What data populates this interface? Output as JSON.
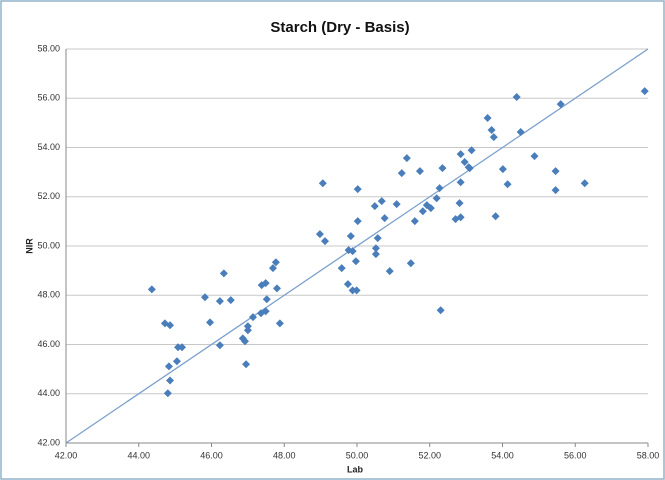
{
  "chart_data": {
    "type": "scatter",
    "title": "Starch (Dry - Basis)",
    "x_label": "Lab",
    "y_label": "NIR",
    "color": "#4a7ebb",
    "grid": true,
    "x": [
      44.36,
      44.72,
      44.86,
      44.83,
      44.86,
      44.8,
      45.05,
      45.08,
      45.19,
      45.82,
      45.96,
      46.23,
      46.34,
      46.23,
      46.53,
      46.86,
      46.92,
      47.0,
      47.0,
      46.95,
      47.14,
      47.36,
      47.38,
      47.49,
      47.49,
      47.52,
      47.69,
      47.77,
      47.8,
      47.88,
      48.98,
      49.12,
      49.06,
      49.58,
      49.75,
      49.77,
      49.83,
      49.88,
      49.88,
      49.99,
      49.97,
      50.02,
      50.02,
      50.49,
      50.52,
      50.52,
      50.57,
      50.68,
      50.76,
      50.9,
      51.09,
      51.23,
      51.37,
      51.48,
      51.59,
      51.73,
      51.81,
      51.92,
      52.03,
      52.19,
      52.27,
      52.35,
      52.3,
      52.71,
      52.85,
      52.82,
      52.85,
      52.85,
      52.96,
      53.07,
      53.15,
      53.1,
      53.59,
      53.7,
      53.76,
      53.81,
      54.01,
      54.14,
      54.39,
      54.5,
      54.88,
      55.46,
      55.46,
      55.6,
      56.26,
      57.91
    ],
    "values": [
      48.24,
      46.86,
      46.78,
      45.11,
      44.54,
      44.02,
      45.32,
      45.89,
      45.89,
      47.92,
      46.9,
      47.76,
      48.89,
      45.97,
      47.8,
      46.25,
      46.13,
      46.74,
      46.58,
      45.2,
      47.11,
      47.27,
      48.41,
      48.49,
      47.35,
      47.84,
      49.1,
      49.34,
      48.28,
      46.86,
      50.48,
      50.2,
      52.55,
      49.1,
      48.45,
      49.83,
      50.4,
      49.79,
      48.2,
      48.2,
      49.38,
      51.01,
      52.31,
      51.62,
      49.91,
      49.67,
      50.32,
      51.82,
      51.13,
      48.98,
      51.7,
      52.96,
      53.57,
      49.3,
      51.01,
      53.04,
      51.41,
      51.66,
      51.54,
      51.94,
      52.35,
      53.16,
      47.39,
      51.09,
      51.17,
      51.74,
      52.59,
      53.73,
      53.41,
      53.2,
      53.89,
      53.16,
      55.2,
      54.71,
      54.42,
      51.21,
      53.12,
      52.51,
      56.05,
      54.63,
      53.65,
      53.04,
      52.27,
      55.76,
      52.55,
      56.29
    ],
    "trendline": {
      "color": "#7ba0cd",
      "x": [
        42,
        58
      ],
      "y": [
        42,
        58
      ]
    },
    "xlim": [
      42,
      58
    ],
    "xticks": [
      {
        "value": 42,
        "label": "42.00"
      },
      {
        "value": 44,
        "label": "44.00"
      },
      {
        "value": 46,
        "label": "46.00"
      },
      {
        "value": 48,
        "label": "48.00"
      },
      {
        "value": 50,
        "label": "50.00"
      },
      {
        "value": 52,
        "label": "52.00"
      },
      {
        "value": 54,
        "label": "54.00"
      },
      {
        "value": 56,
        "label": "56.00"
      },
      {
        "value": 58,
        "label": "58.00"
      }
    ],
    "ylim": [
      42,
      58
    ],
    "yticks": [
      {
        "value": 42,
        "label": "42.00"
      },
      {
        "value": 44,
        "label": "44.00"
      },
      {
        "value": 46,
        "label": "46.00"
      },
      {
        "value": 48,
        "label": "48.00"
      },
      {
        "value": 50,
        "label": "50.00"
      },
      {
        "value": 52,
        "label": "52.00"
      },
      {
        "value": 54,
        "label": "54.00"
      },
      {
        "value": 56,
        "label": "56.00"
      },
      {
        "value": 58,
        "label": "58.00"
      }
    ]
  }
}
